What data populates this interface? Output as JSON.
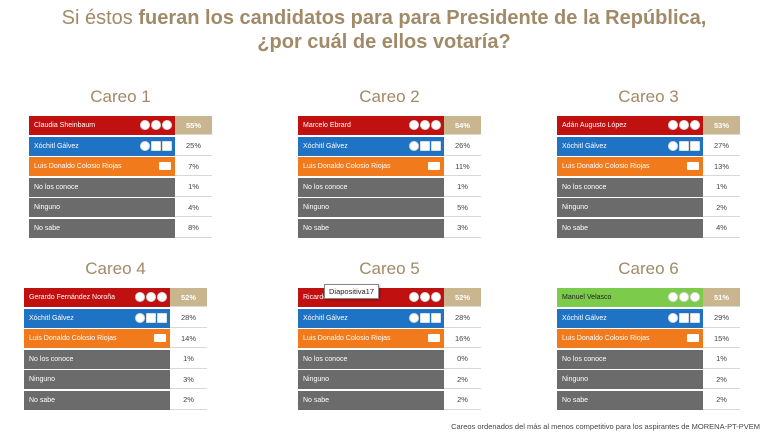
{
  "title": {
    "prefix": "Si éstos ",
    "bold1": "fueran los candidatos para para Presidente de la República,",
    "line2": "¿por cuál de ellos votaría?"
  },
  "tooltip": "Diapositiva17",
  "footnote": "Careos ordenados del más al menos competitivo para los aspirantes de MORENA-PT-PVEM",
  "colors": {
    "morena": "#c01010",
    "verde": "#7ccb4a",
    "xochitl": "#1f73c4",
    "colosio": "#f07a1c",
    "gray": "#6b6b6b",
    "highlight": "#c9b68f",
    "title": "#a08a68"
  },
  "chart_data": [
    {
      "type": "table",
      "title": "Careo 1",
      "rows": [
        {
          "label": "Claudia Sheinbaum",
          "value": "55%",
          "party": "morena"
        },
        {
          "label": "Xóchitl Gálvez",
          "value": "25%",
          "party": "xochitl"
        },
        {
          "label": "Luis Donaldo Colosio Riojas",
          "value": "7%",
          "party": "colosio"
        },
        {
          "label": "No los conoce",
          "value": "1%",
          "party": "gray"
        },
        {
          "label": "Ninguno",
          "value": "4%",
          "party": "gray"
        },
        {
          "label": "No sabe",
          "value": "8%",
          "party": "gray"
        }
      ]
    },
    {
      "type": "table",
      "title": "Careo 2",
      "rows": [
        {
          "label": "Marcelo Ebrard",
          "value": "54%",
          "party": "morena"
        },
        {
          "label": "Xóchitl Gálvez",
          "value": "26%",
          "party": "xochitl"
        },
        {
          "label": "Luis Donaldo Colosio Riojas",
          "value": "11%",
          "party": "colosio"
        },
        {
          "label": "No los conoce",
          "value": "1%",
          "party": "gray"
        },
        {
          "label": "Ninguno",
          "value": "5%",
          "party": "gray"
        },
        {
          "label": "No sabe",
          "value": "3%",
          "party": "gray"
        }
      ]
    },
    {
      "type": "table",
      "title": "Careo 3",
      "rows": [
        {
          "label": "Adán Augusto López",
          "value": "53%",
          "party": "morena"
        },
        {
          "label": "Xóchitl Gálvez",
          "value": "27%",
          "party": "xochitl"
        },
        {
          "label": "Luis Donaldo Colosio Riojas",
          "value": "13%",
          "party": "colosio"
        },
        {
          "label": "No los conoce",
          "value": "1%",
          "party": "gray"
        },
        {
          "label": "Ninguno",
          "value": "2%",
          "party": "gray"
        },
        {
          "label": "No sabe",
          "value": "4%",
          "party": "gray"
        }
      ]
    },
    {
      "type": "table",
      "title": "Careo 4",
      "rows": [
        {
          "label": "Gerardo Fernández Noroña",
          "value": "52%",
          "party": "morena"
        },
        {
          "label": "Xóchitl Gálvez",
          "value": "28%",
          "party": "xochitl"
        },
        {
          "label": "Luis Donaldo Colosio Riojas",
          "value": "14%",
          "party": "colosio"
        },
        {
          "label": "No los conoce",
          "value": "1%",
          "party": "gray"
        },
        {
          "label": "Ninguno",
          "value": "3%",
          "party": "gray"
        },
        {
          "label": "No sabe",
          "value": "2%",
          "party": "gray"
        }
      ]
    },
    {
      "type": "table",
      "title": "Careo 5",
      "rows": [
        {
          "label": "Ricardo Monreal",
          "value": "52%",
          "party": "morena"
        },
        {
          "label": "Xóchitl Gálvez",
          "value": "28%",
          "party": "xochitl"
        },
        {
          "label": "Luis Donaldo Colosio Riojas",
          "value": "16%",
          "party": "colosio"
        },
        {
          "label": "No los conoce",
          "value": "0%",
          "party": "gray"
        },
        {
          "label": "Ninguno",
          "value": "2%",
          "party": "gray"
        },
        {
          "label": "No sabe",
          "value": "2%",
          "party": "gray"
        }
      ]
    },
    {
      "type": "table",
      "title": "Careo 6",
      "rows": [
        {
          "label": "Manuel Velasco",
          "value": "51%",
          "party": "verde"
        },
        {
          "label": "Xóchitl Gálvez",
          "value": "29%",
          "party": "xochitl"
        },
        {
          "label": "Luis Donaldo Colosio Riojas",
          "value": "15%",
          "party": "colosio"
        },
        {
          "label": "No los conoce",
          "value": "1%",
          "party": "gray"
        },
        {
          "label": "Ninguno",
          "value": "2%",
          "party": "gray"
        },
        {
          "label": "No sabe",
          "value": "2%",
          "party": "gray"
        }
      ]
    }
  ]
}
